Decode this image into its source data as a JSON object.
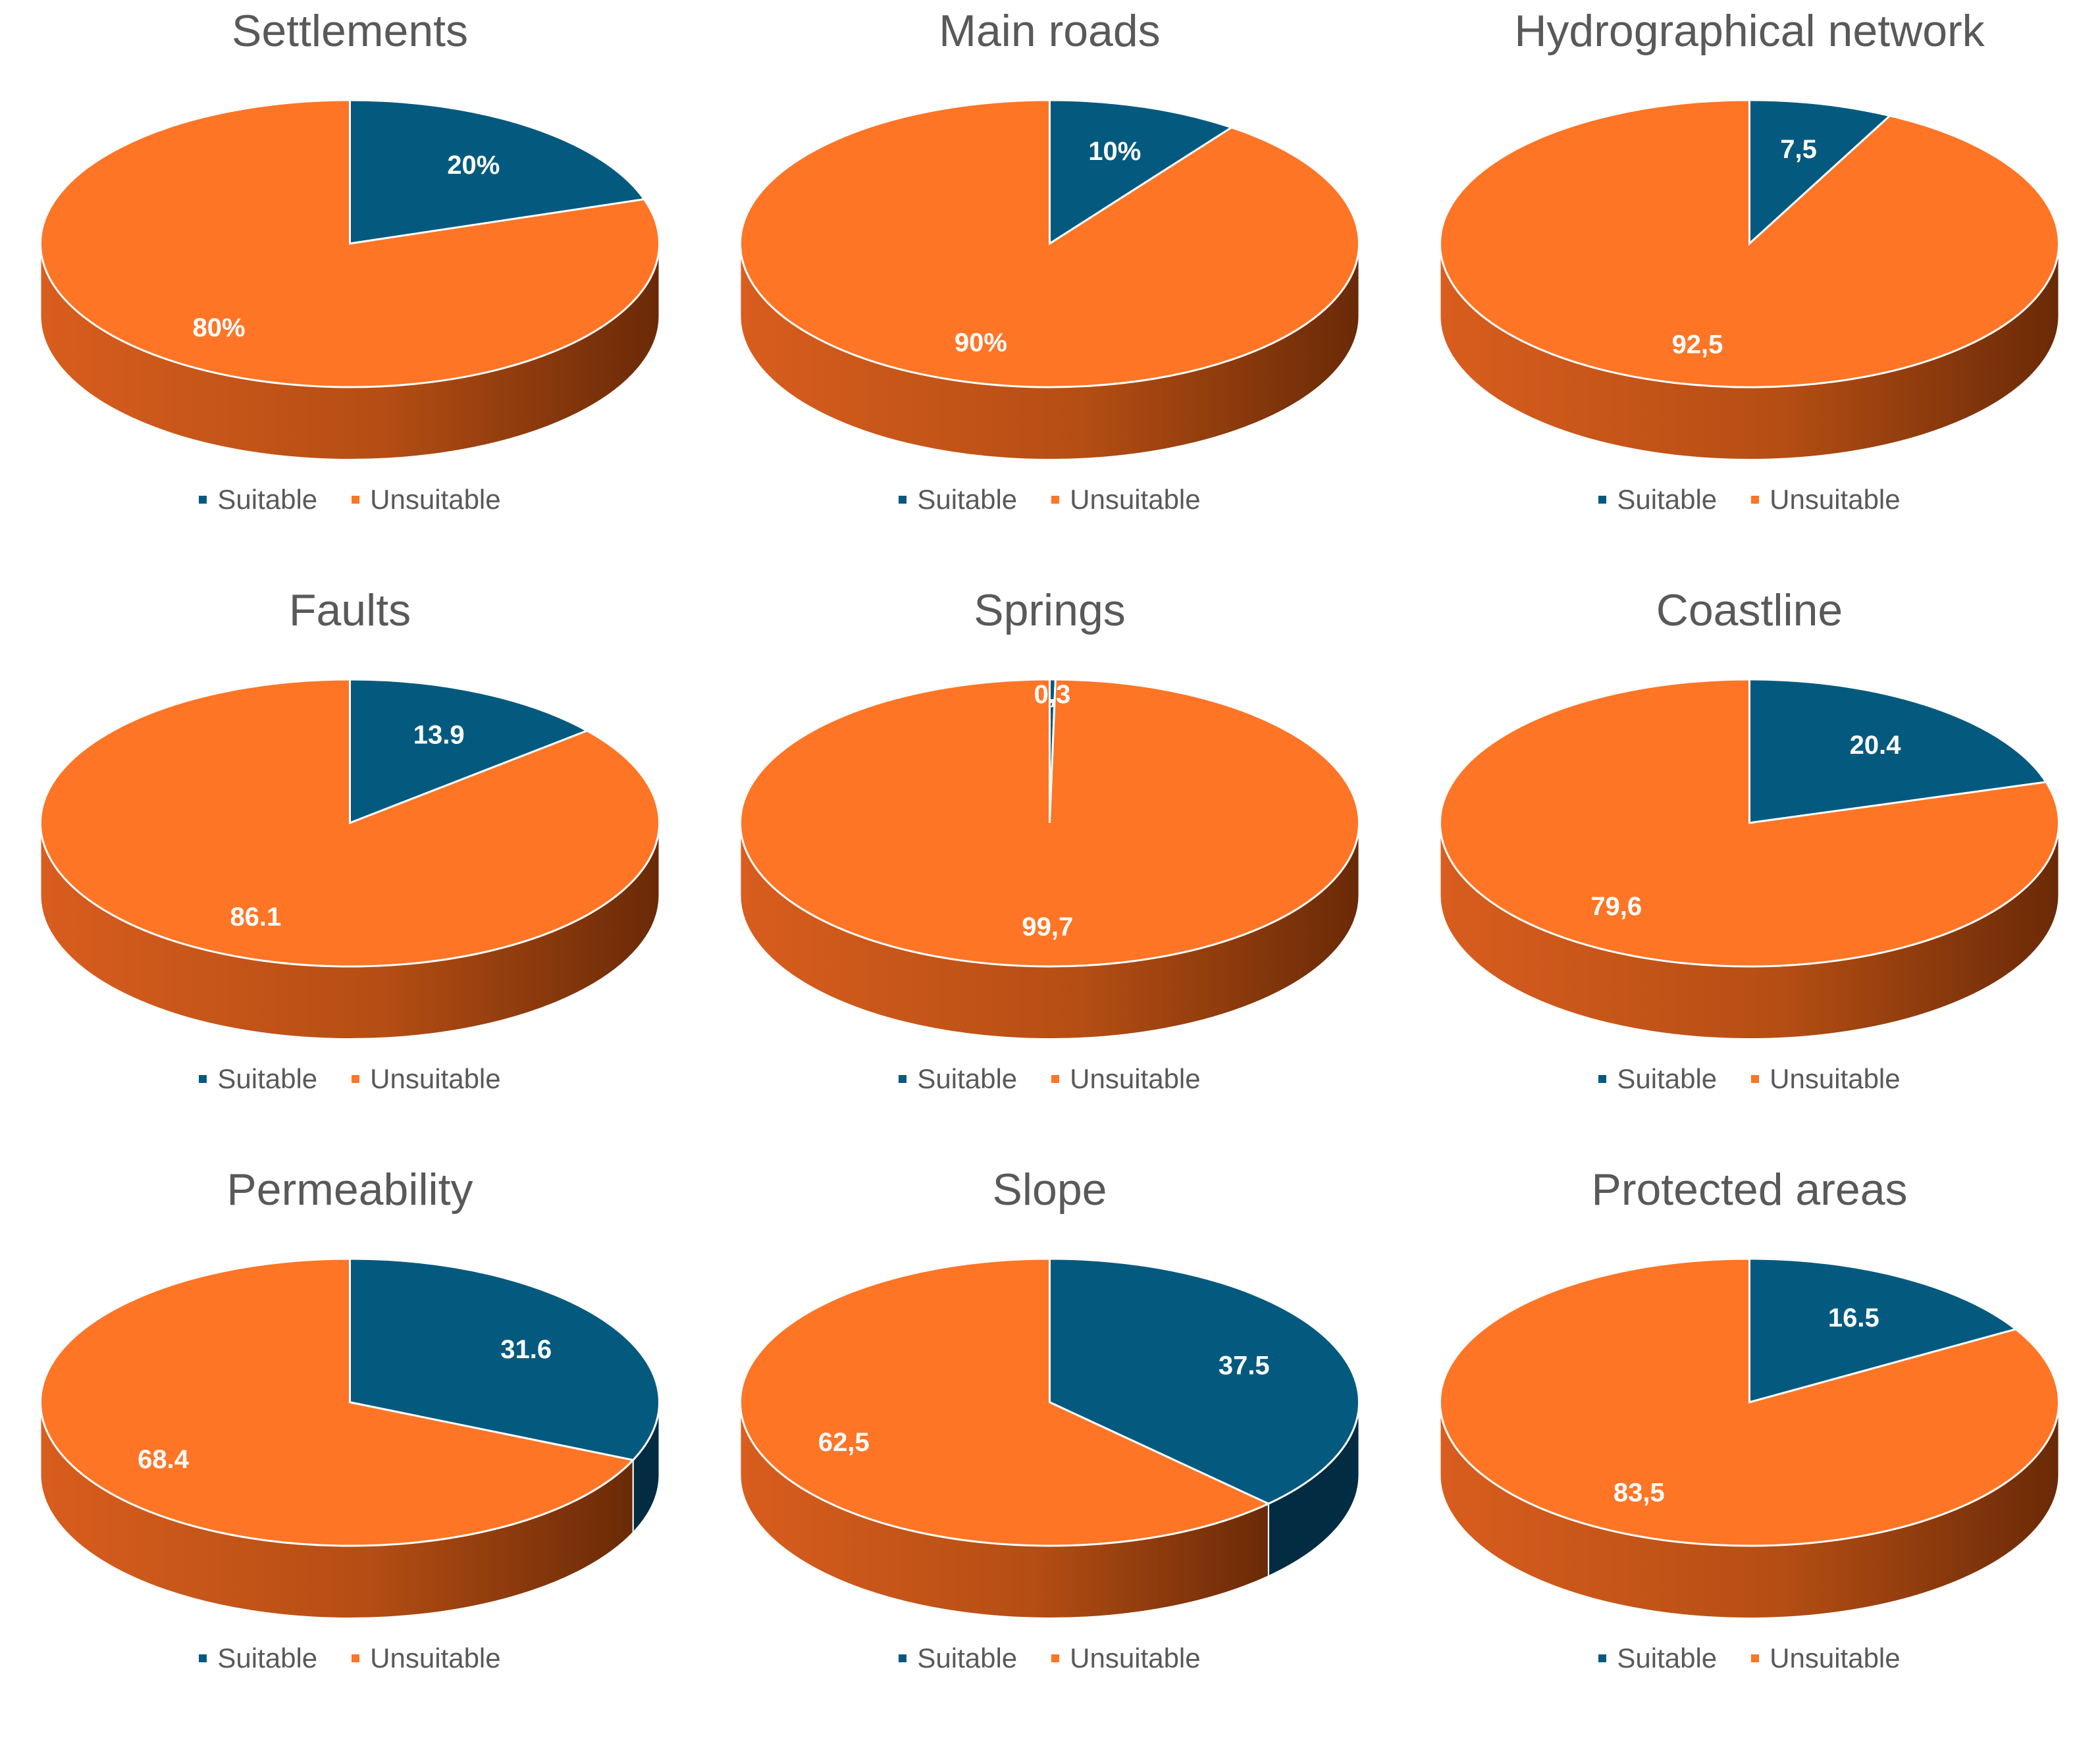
{
  "colors": {
    "suitable": "#045a7e",
    "suitable_side": "#012c42",
    "unsuitable": "#fe7526",
    "unsuitable_side_light": "#d85d1e",
    "unsuitable_side_dark": "#6a2a07"
  },
  "chart_data": [
    {
      "type": "pie",
      "title": "Settlements",
      "categories": [
        "Suitable",
        "Unsuitable"
      ],
      "values": [
        20,
        80
      ],
      "data_labels": [
        "20%",
        "80%"
      ],
      "legend": [
        "Suitable",
        "Unsuitable"
      ]
    },
    {
      "type": "pie",
      "title": "Main roads",
      "categories": [
        "Suitable",
        "Unsuitable"
      ],
      "values": [
        10,
        90
      ],
      "data_labels": [
        "10%",
        "90%"
      ],
      "legend": [
        "Suitable",
        "Unsuitable"
      ]
    },
    {
      "type": "pie",
      "title": "Hydrographical network",
      "categories": [
        "Suitable",
        "Unsuitable"
      ],
      "values": [
        7.5,
        92.5
      ],
      "data_labels": [
        "7,5",
        "92,5"
      ],
      "legend": [
        "Suitable",
        "Unsuitable"
      ]
    },
    {
      "type": "pie",
      "title": "Faults",
      "categories": [
        "Suitable",
        "Unsuitable"
      ],
      "values": [
        13.9,
        86.1
      ],
      "data_labels": [
        "13.9",
        "86.1"
      ],
      "legend": [
        "Suitable",
        "Unsuitable"
      ]
    },
    {
      "type": "pie",
      "title": "Springs",
      "categories": [
        "Suitable",
        "Unsuitable"
      ],
      "values": [
        0.3,
        99.7
      ],
      "data_labels": [
        "0,3",
        "99,7"
      ],
      "legend": [
        "Suitable",
        "Unsuitable"
      ]
    },
    {
      "type": "pie",
      "title": "Coastline",
      "categories": [
        "Suitable",
        "Unsuitable"
      ],
      "values": [
        20.4,
        79.6
      ],
      "data_labels": [
        "20.4",
        "79,6"
      ],
      "legend": [
        "Suitable",
        "Unsuitable"
      ]
    },
    {
      "type": "pie",
      "title": "Permeability",
      "categories": [
        "Suitable",
        "Unsuitable"
      ],
      "values": [
        31.6,
        68.4
      ],
      "data_labels": [
        "31.6",
        "68.4"
      ],
      "legend": [
        "Suitable",
        "Unsuitable"
      ]
    },
    {
      "type": "pie",
      "title": "Slope",
      "categories": [
        "Suitable",
        "Unsuitable"
      ],
      "values": [
        37.5,
        62.5
      ],
      "data_labels": [
        "37.5",
        "62,5"
      ],
      "legend": [
        "Suitable",
        "Unsuitable"
      ]
    },
    {
      "type": "pie",
      "title": "Protected areas",
      "categories": [
        "Suitable",
        "Unsuitable"
      ],
      "values": [
        16.5,
        83.5
      ],
      "data_labels": [
        "16.5",
        "83,5"
      ],
      "legend": [
        "Suitable",
        "Unsuitable"
      ]
    }
  ]
}
